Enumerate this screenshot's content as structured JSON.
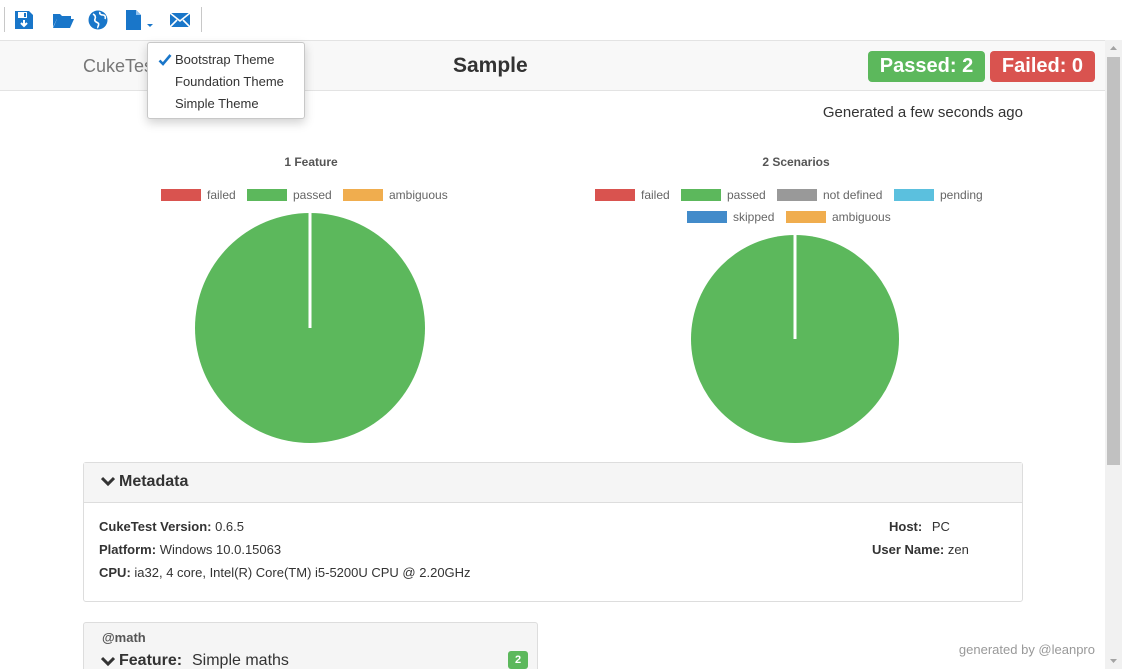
{
  "toolbar": {
    "buttons": [
      {
        "name": "save-icon",
        "label": "Save"
      },
      {
        "name": "folder-open-icon",
        "label": "Open"
      },
      {
        "name": "globe-icon",
        "label": "Browser"
      },
      {
        "name": "file-theme-icon",
        "label": "Theme"
      },
      {
        "name": "envelope-icon",
        "label": "Email"
      }
    ]
  },
  "theme_menu": {
    "items": [
      {
        "label": "Bootstrap Theme",
        "checked": true
      },
      {
        "label": "Foundation Theme",
        "checked": false
      },
      {
        "label": "Simple Theme",
        "checked": false
      }
    ]
  },
  "navbar": {
    "brand": "CukeTest",
    "title": "Sample",
    "passed_label": "Passed: 2",
    "failed_label": "Failed: 0"
  },
  "generated_text": "Generated a few seconds ago",
  "colors": {
    "failed": "#d9534f",
    "passed": "#5cb85c",
    "not_defined": "#999999",
    "pending": "#5bc0de",
    "skipped": "#428bca",
    "ambiguous": "#f0ad4e"
  },
  "chart_data": [
    {
      "type": "pie",
      "title": "1 Feature",
      "legend": [
        "failed",
        "passed",
        "ambiguous"
      ],
      "values": [
        0,
        1,
        0
      ],
      "legend_position": "top"
    },
    {
      "type": "pie",
      "title": "2 Scenarios",
      "legend": [
        "failed",
        "passed",
        "not defined",
        "pending",
        "skipped",
        "ambiguous"
      ],
      "values": [
        0,
        2,
        0,
        0,
        0,
        0
      ],
      "legend_position": "top"
    }
  ],
  "metadata": {
    "heading": "Metadata",
    "version_label": "CukeTest Version:",
    "version": "0.6.5",
    "platform_label": "Platform:",
    "platform": "Windows 10.0.15063",
    "cpu_label": "CPU:",
    "cpu": "ia32, 4 core, Intel(R) Core(TM) i5-5200U CPU @ 2.20GHz",
    "host_label": "Host:",
    "host": "PC",
    "user_label": "User Name:",
    "user": "zen"
  },
  "feature": {
    "tag": "@math",
    "keyword": "Feature:",
    "name": "Simple maths",
    "count": "2"
  },
  "footer": "generated by @leanpro"
}
